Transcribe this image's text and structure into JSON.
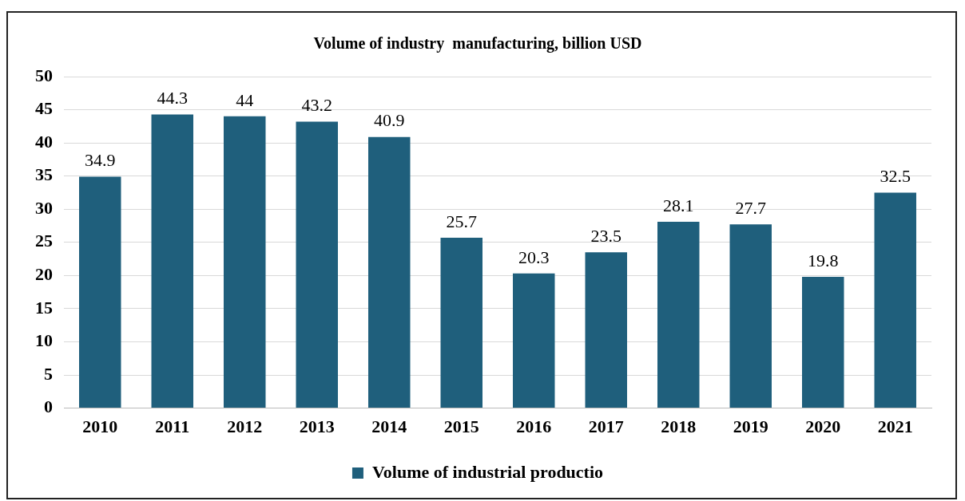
{
  "chart_data": {
    "type": "bar",
    "title": "Volume of industry  manufacturing, billion USD",
    "categories": [
      "2010",
      "2011",
      "2012",
      "2013",
      "2014",
      "2015",
      "2016",
      "2017",
      "2018",
      "2019",
      "2020",
      "2021"
    ],
    "series": [
      {
        "name": "Volume of industrial productio",
        "color": "#1f5f7c",
        "values": [
          34.9,
          44.3,
          44,
          43.2,
          40.9,
          25.7,
          20.3,
          23.5,
          28.1,
          27.7,
          19.8,
          32.5
        ]
      }
    ],
    "ylim": [
      0,
      50
    ],
    "yticks": [
      0,
      5,
      10,
      15,
      20,
      25,
      30,
      35,
      40,
      45,
      50
    ],
    "grid": "y",
    "legend": "bottom",
    "data_labels": true
  }
}
